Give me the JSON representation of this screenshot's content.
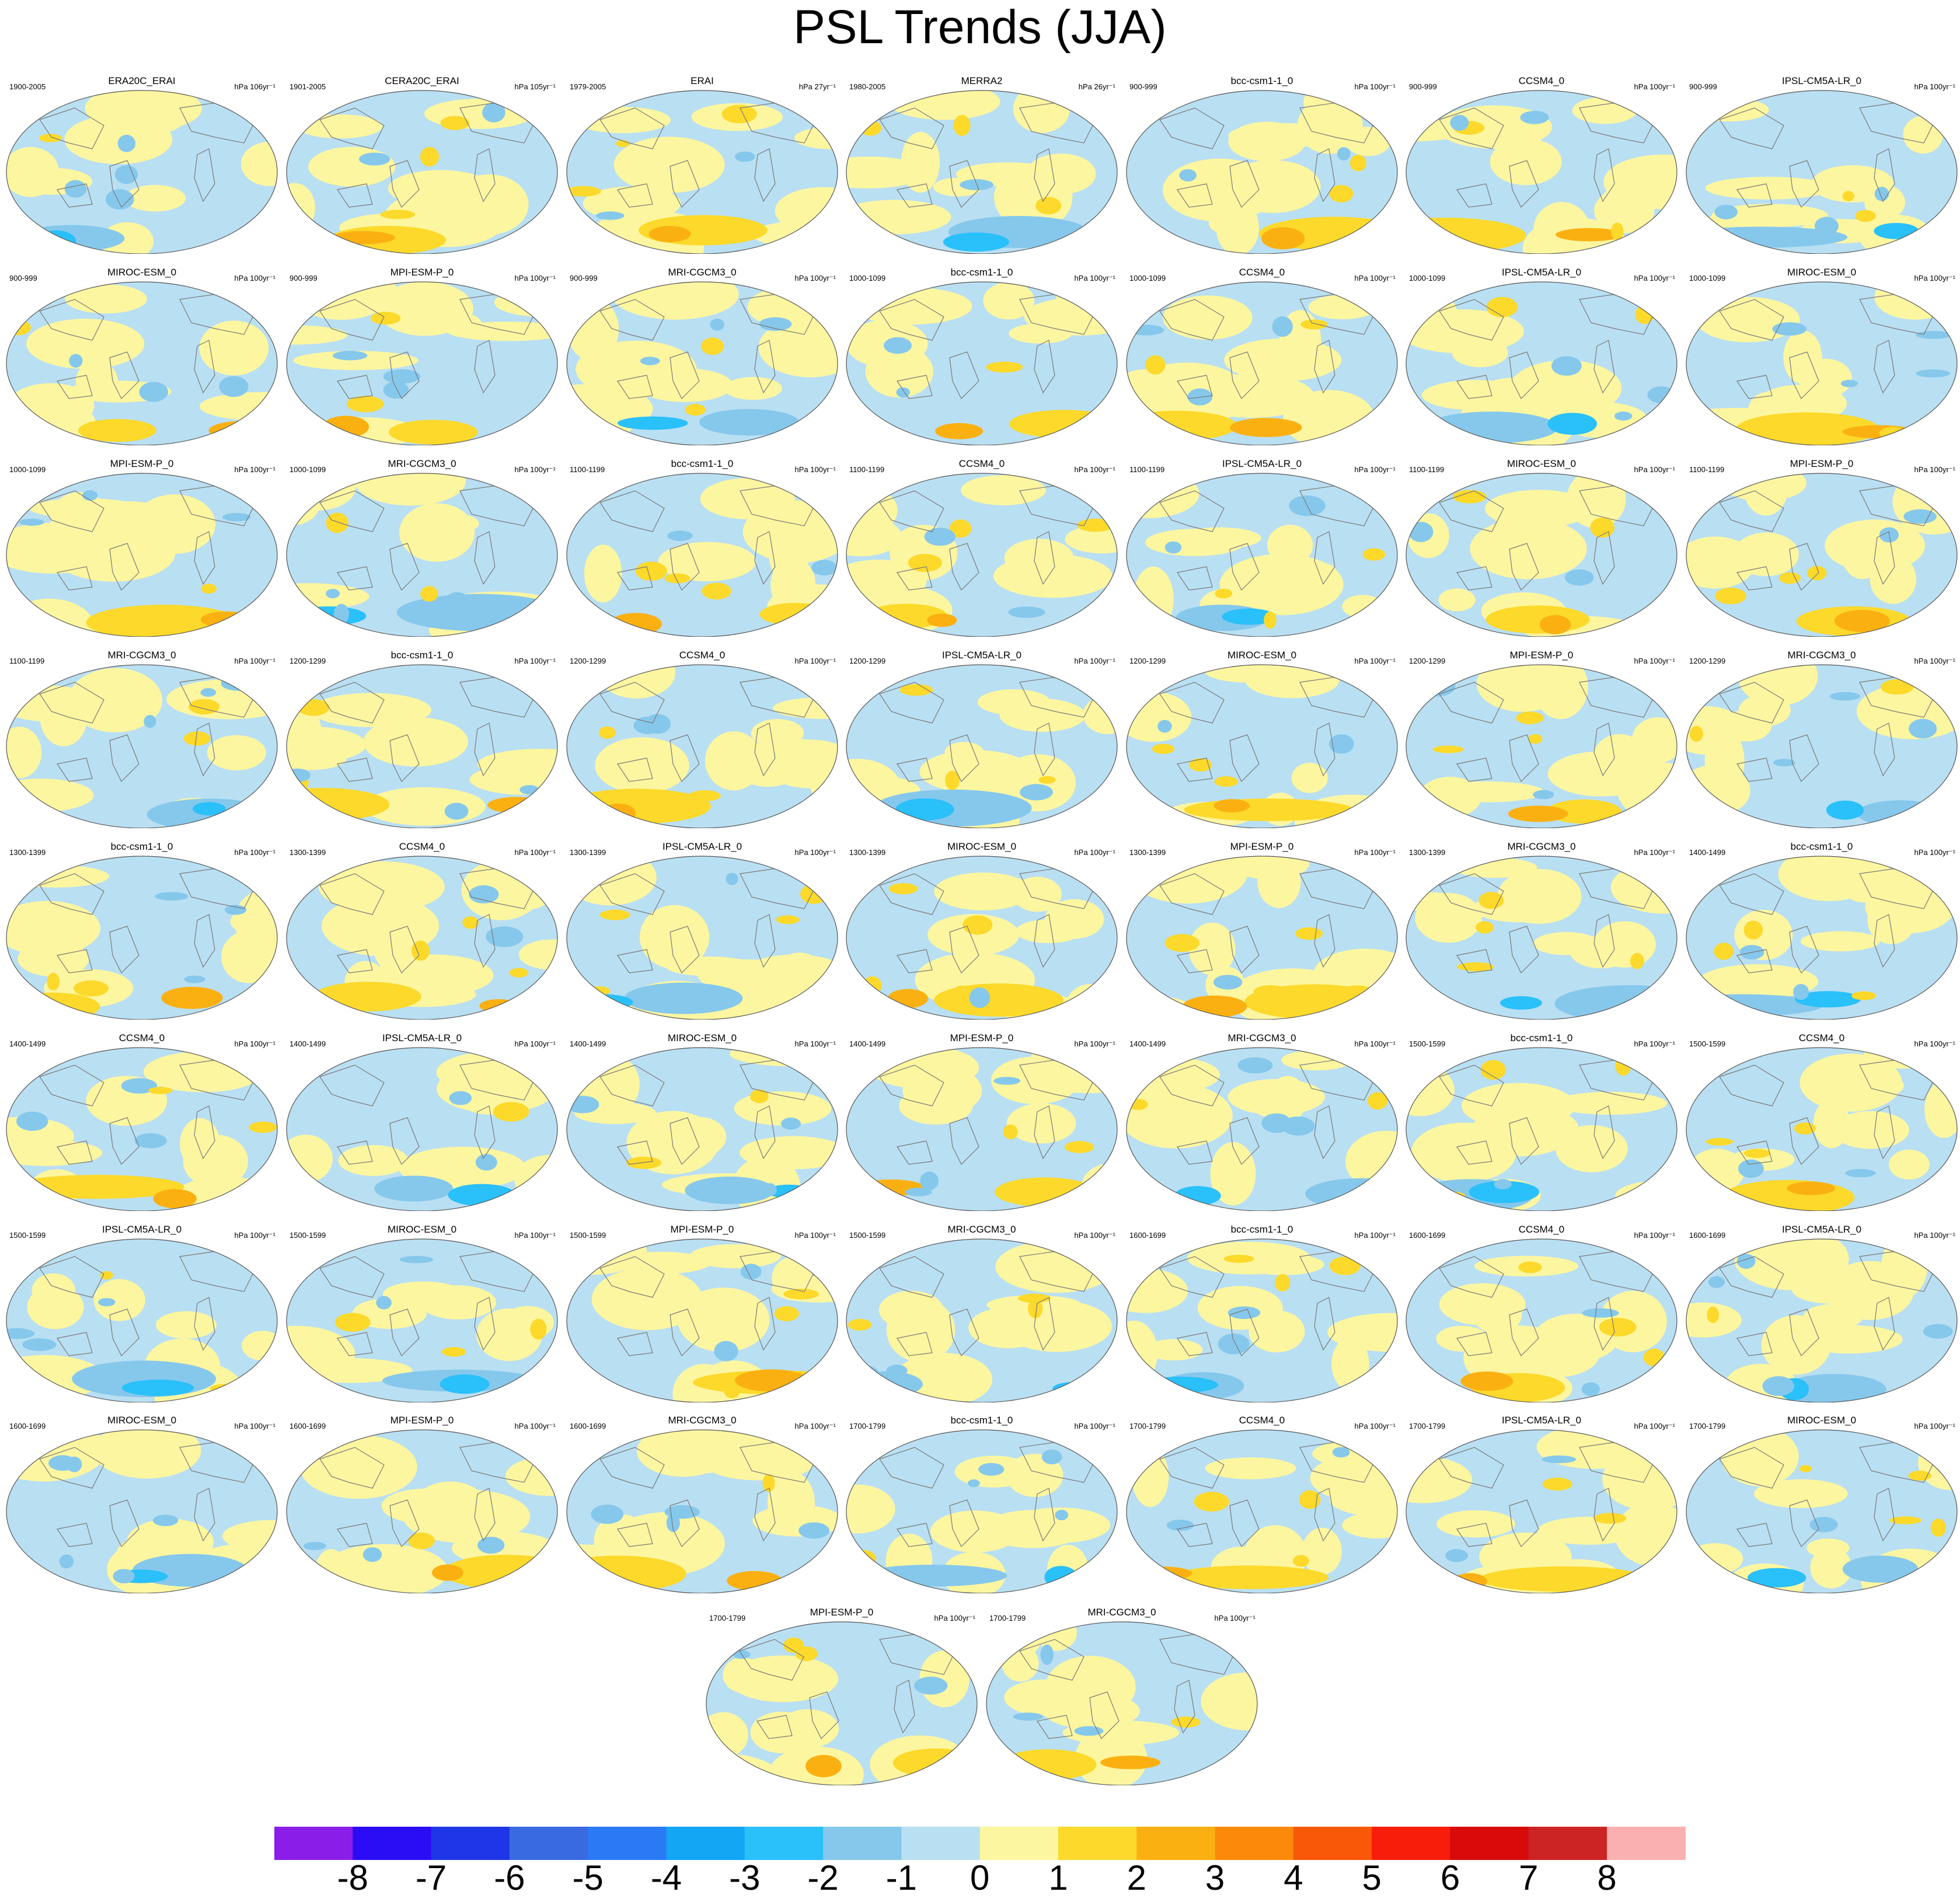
{
  "chart_data": {
    "type": "heatmap",
    "title": "PSL Trends (JJA)",
    "colorbar": {
      "labels": [
        "-8",
        "-7",
        "-6",
        "-5",
        "-4",
        "-3",
        "-2",
        "-1",
        "0",
        "1",
        "2",
        "3",
        "4",
        "5",
        "6",
        "7",
        "8"
      ],
      "colors": [
        "#8a1ee8",
        "#2a0cf5",
        "#1e36e8",
        "#3a6ae0",
        "#2a7af5",
        "#12a6f5",
        "#2ac0fa",
        "#86c8ec",
        "#b9dff2",
        "#fdf6a0",
        "#fcd92a",
        "#fbb012",
        "#fb8a0a",
        "#f85808",
        "#f81c0a",
        "#d80a0a",
        "#cc2424",
        "#fab0b0"
      ]
    },
    "panels": [
      {
        "period": "1900-2005",
        "name": "ERA20C_ERAI",
        "units": "hPa 106yr⁻¹"
      },
      {
        "period": "1901-2005",
        "name": "CERA20C_ERAI",
        "units": "hPa 105yr⁻¹"
      },
      {
        "period": "1979-2005",
        "name": "ERAI",
        "units": "hPa 27yr⁻¹"
      },
      {
        "period": "1980-2005",
        "name": "MERRA2",
        "units": "hPa 26yr⁻¹"
      },
      {
        "period": "900-999",
        "name": "bcc-csm1-1_0",
        "units": "hPa 100yr⁻¹"
      },
      {
        "period": "900-999",
        "name": "CCSM4_0",
        "units": "hPa 100yr⁻¹"
      },
      {
        "period": "900-999",
        "name": "IPSL-CM5A-LR_0",
        "units": "hPa 100yr⁻¹"
      },
      {
        "period": "900-999",
        "name": "MIROC-ESM_0",
        "units": "hPa 100yr⁻¹"
      },
      {
        "period": "900-999",
        "name": "MPI-ESM-P_0",
        "units": "hPa 100yr⁻¹"
      },
      {
        "period": "900-999",
        "name": "MRI-CGCM3_0",
        "units": "hPa 100yr⁻¹"
      },
      {
        "period": "1000-1099",
        "name": "bcc-csm1-1_0",
        "units": "hPa 100yr⁻¹"
      },
      {
        "period": "1000-1099",
        "name": "CCSM4_0",
        "units": "hPa 100yr⁻¹"
      },
      {
        "period": "1000-1099",
        "name": "IPSL-CM5A-LR_0",
        "units": "hPa 100yr⁻¹"
      },
      {
        "period": "1000-1099",
        "name": "MIROC-ESM_0",
        "units": "hPa 100yr⁻¹"
      },
      {
        "period": "1000-1099",
        "name": "MPI-ESM-P_0",
        "units": "hPa 100yr⁻¹"
      },
      {
        "period": "1000-1099",
        "name": "MRI-CGCM3_0",
        "units": "hPa 100yr⁻¹"
      },
      {
        "period": "1100-1199",
        "name": "bcc-csm1-1_0",
        "units": "hPa 100yr⁻¹"
      },
      {
        "period": "1100-1199",
        "name": "CCSM4_0",
        "units": "hPa 100yr⁻¹"
      },
      {
        "period": "1100-1199",
        "name": "IPSL-CM5A-LR_0",
        "units": "hPa 100yr⁻¹"
      },
      {
        "period": "1100-1199",
        "name": "MIROC-ESM_0",
        "units": "hPa 100yr⁻¹"
      },
      {
        "period": "1100-1199",
        "name": "MPI-ESM-P_0",
        "units": "hPa 100yr⁻¹"
      },
      {
        "period": "1100-1199",
        "name": "MRI-CGCM3_0",
        "units": "hPa 100yr⁻¹"
      },
      {
        "period": "1200-1299",
        "name": "bcc-csm1-1_0",
        "units": "hPa 100yr⁻¹"
      },
      {
        "period": "1200-1299",
        "name": "CCSM4_0",
        "units": "hPa 100yr⁻¹"
      },
      {
        "period": "1200-1299",
        "name": "IPSL-CM5A-LR_0",
        "units": "hPa 100yr⁻¹"
      },
      {
        "period": "1200-1299",
        "name": "MIROC-ESM_0",
        "units": "hPa 100yr⁻¹"
      },
      {
        "period": "1200-1299",
        "name": "MPI-ESM-P_0",
        "units": "hPa 100yr⁻¹"
      },
      {
        "period": "1200-1299",
        "name": "MRI-CGCM3_0",
        "units": "hPa 100yr⁻¹"
      },
      {
        "period": "1300-1399",
        "name": "bcc-csm1-1_0",
        "units": "hPa 100yr⁻¹"
      },
      {
        "period": "1300-1399",
        "name": "CCSM4_0",
        "units": "hPa 100yr⁻¹"
      },
      {
        "period": "1300-1399",
        "name": "IPSL-CM5A-LR_0",
        "units": "hPa 100yr⁻¹"
      },
      {
        "period": "1300-1399",
        "name": "MIROC-ESM_0",
        "units": "hPa 100yr⁻¹"
      },
      {
        "period": "1300-1399",
        "name": "MPI-ESM-P_0",
        "units": "hPa 100yr⁻¹"
      },
      {
        "period": "1300-1399",
        "name": "MRI-CGCM3_0",
        "units": "hPa 100yr⁻¹"
      },
      {
        "period": "1400-1499",
        "name": "bcc-csm1-1_0",
        "units": "hPa 100yr⁻¹"
      },
      {
        "period": "1400-1499",
        "name": "CCSM4_0",
        "units": "hPa 100yr⁻¹"
      },
      {
        "period": "1400-1499",
        "name": "IPSL-CM5A-LR_0",
        "units": "hPa 100yr⁻¹"
      },
      {
        "period": "1400-1499",
        "name": "MIROC-ESM_0",
        "units": "hPa 100yr⁻¹"
      },
      {
        "period": "1400-1499",
        "name": "MPI-ESM-P_0",
        "units": "hPa 100yr⁻¹"
      },
      {
        "period": "1400-1499",
        "name": "MRI-CGCM3_0",
        "units": "hPa 100yr⁻¹"
      },
      {
        "period": "1500-1599",
        "name": "bcc-csm1-1_0",
        "units": "hPa 100yr⁻¹"
      },
      {
        "period": "1500-1599",
        "name": "CCSM4_0",
        "units": "hPa 100yr⁻¹"
      },
      {
        "period": "1500-1599",
        "name": "IPSL-CM5A-LR_0",
        "units": "hPa 100yr⁻¹"
      },
      {
        "period": "1500-1599",
        "name": "MIROC-ESM_0",
        "units": "hPa 100yr⁻¹"
      },
      {
        "period": "1500-1599",
        "name": "MPI-ESM-P_0",
        "units": "hPa 100yr⁻¹"
      },
      {
        "period": "1500-1599",
        "name": "MRI-CGCM3_0",
        "units": "hPa 100yr⁻¹"
      },
      {
        "period": "1600-1699",
        "name": "bcc-csm1-1_0",
        "units": "hPa 100yr⁻¹"
      },
      {
        "period": "1600-1699",
        "name": "CCSM4_0",
        "units": "hPa 100yr⁻¹"
      },
      {
        "period": "1600-1699",
        "name": "IPSL-CM5A-LR_0",
        "units": "hPa 100yr⁻¹"
      },
      {
        "period": "1600-1699",
        "name": "MIROC-ESM_0",
        "units": "hPa 100yr⁻¹"
      },
      {
        "period": "1600-1699",
        "name": "MPI-ESM-P_0",
        "units": "hPa 100yr⁻¹"
      },
      {
        "period": "1600-1699",
        "name": "MRI-CGCM3_0",
        "units": "hPa 100yr⁻¹"
      },
      {
        "period": "1700-1799",
        "name": "bcc-csm1-1_0",
        "units": "hPa 100yr⁻¹"
      },
      {
        "period": "1700-1799",
        "name": "CCSM4_0",
        "units": "hPa 100yr⁻¹"
      },
      {
        "period": "1700-1799",
        "name": "IPSL-CM5A-LR_0",
        "units": "hPa 100yr⁻¹"
      },
      {
        "period": "1700-1799",
        "name": "MIROC-ESM_0",
        "units": "hPa 100yr⁻¹"
      },
      {
        "period": "1700-1799",
        "name": "MPI-ESM-P_0",
        "units": "hPa 100yr⁻¹"
      },
      {
        "period": "1700-1799",
        "name": "MRI-CGCM3_0",
        "units": "hPa 100yr⁻¹"
      }
    ]
  }
}
